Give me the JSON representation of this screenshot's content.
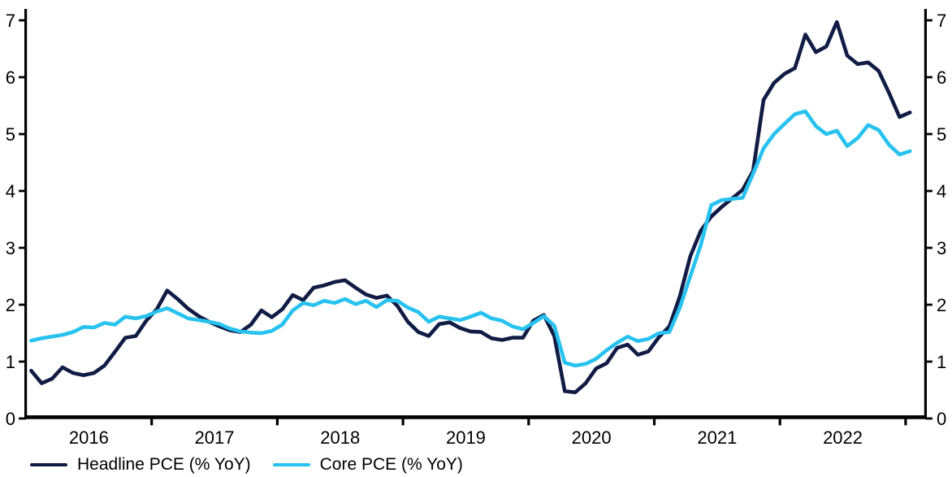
{
  "chart_data": {
    "type": "line",
    "title": "",
    "xlabel": "",
    "ylabel": "",
    "ylim": [
      0,
      7
    ],
    "yticks": [
      0,
      1,
      2,
      3,
      4,
      5,
      6,
      7
    ],
    "ytick_labels_left": [
      "0",
      "1",
      "2",
      "3",
      "4",
      "5",
      "6",
      "7"
    ],
    "ytick_labels_right": [
      "0",
      "1",
      "2",
      "3",
      "4",
      "5",
      "6",
      "7"
    ],
    "x_tick_years": [
      "2016",
      "2017",
      "2018",
      "2019",
      "2020",
      "2021",
      "2022"
    ],
    "grid": false,
    "legend_position": "bottom-left",
    "axes_style": {
      "left_axis": true,
      "right_axis": true,
      "bottom_axis": true,
      "axis_color": "#000000",
      "ticks_outward": true
    },
    "x": [
      "2016-01",
      "2016-02",
      "2016-03",
      "2016-04",
      "2016-05",
      "2016-06",
      "2016-07",
      "2016-08",
      "2016-09",
      "2016-10",
      "2016-11",
      "2016-12",
      "2017-01",
      "2017-02",
      "2017-03",
      "2017-04",
      "2017-05",
      "2017-06",
      "2017-07",
      "2017-08",
      "2017-09",
      "2017-10",
      "2017-11",
      "2017-12",
      "2018-01",
      "2018-02",
      "2018-03",
      "2018-04",
      "2018-05",
      "2018-06",
      "2018-07",
      "2018-08",
      "2018-09",
      "2018-10",
      "2018-11",
      "2018-12",
      "2019-01",
      "2019-02",
      "2019-03",
      "2019-04",
      "2019-05",
      "2019-06",
      "2019-07",
      "2019-08",
      "2019-09",
      "2019-10",
      "2019-11",
      "2019-12",
      "2020-01",
      "2020-02",
      "2020-03",
      "2020-04",
      "2020-05",
      "2020-06",
      "2020-07",
      "2020-08",
      "2020-09",
      "2020-10",
      "2020-11",
      "2020-12",
      "2021-01",
      "2021-02",
      "2021-03",
      "2021-04",
      "2021-05",
      "2021-06",
      "2021-07",
      "2021-08",
      "2021-09",
      "2021-10",
      "2021-11",
      "2021-12",
      "2022-01",
      "2022-02",
      "2022-03",
      "2022-04",
      "2022-05",
      "2022-06",
      "2022-07",
      "2022-08",
      "2022-09",
      "2022-10",
      "2022-11",
      "2022-12",
      "2023-01"
    ],
    "series": [
      {
        "name": "Headline PCE (% YoY)",
        "color": "#101c45",
        "values": [
          0.84,
          0.62,
          0.7,
          0.9,
          0.8,
          0.76,
          0.8,
          0.93,
          1.17,
          1.42,
          1.45,
          1.72,
          1.92,
          2.25,
          2.1,
          1.93,
          1.8,
          1.7,
          1.62,
          1.55,
          1.52,
          1.65,
          1.9,
          1.78,
          1.92,
          2.17,
          2.08,
          2.3,
          2.34,
          2.4,
          2.43,
          2.3,
          2.18,
          2.12,
          2.16,
          1.98,
          1.7,
          1.52,
          1.45,
          1.66,
          1.69,
          1.59,
          1.53,
          1.52,
          1.41,
          1.38,
          1.42,
          1.42,
          1.72,
          1.82,
          1.45,
          0.48,
          0.46,
          0.62,
          0.88,
          0.97,
          1.24,
          1.3,
          1.12,
          1.18,
          1.43,
          1.62,
          2.15,
          2.85,
          3.3,
          3.55,
          3.72,
          3.87,
          4.02,
          4.35,
          5.6,
          5.9,
          6.06,
          6.16,
          6.75,
          6.44,
          6.54,
          6.97,
          6.38,
          6.23,
          6.26,
          6.11,
          5.72,
          5.3,
          5.38
        ]
      },
      {
        "name": "Core PCE (% YoY)",
        "color": "#28c2f0",
        "values": [
          1.37,
          1.41,
          1.44,
          1.47,
          1.52,
          1.61,
          1.6,
          1.68,
          1.65,
          1.79,
          1.76,
          1.8,
          1.88,
          1.94,
          1.85,
          1.76,
          1.73,
          1.7,
          1.66,
          1.58,
          1.53,
          1.51,
          1.5,
          1.54,
          1.65,
          1.9,
          2.03,
          1.99,
          2.07,
          2.03,
          2.1,
          2.01,
          2.07,
          1.96,
          2.08,
          2.07,
          1.95,
          1.87,
          1.7,
          1.79,
          1.76,
          1.73,
          1.79,
          1.86,
          1.76,
          1.72,
          1.62,
          1.57,
          1.68,
          1.8,
          1.63,
          0.98,
          0.93,
          0.96,
          1.05,
          1.2,
          1.33,
          1.44,
          1.36,
          1.4,
          1.5,
          1.52,
          1.95,
          2.5,
          3.05,
          3.75,
          3.84,
          3.86,
          3.88,
          4.3,
          4.75,
          5.0,
          5.18,
          5.35,
          5.4,
          5.14,
          5.0,
          5.06,
          4.79,
          4.93,
          5.16,
          5.07,
          4.81,
          4.64,
          4.7
        ]
      }
    ]
  },
  "legend": {
    "items": [
      {
        "label": "Headline PCE (% YoY)",
        "color": "#101c45"
      },
      {
        "label": "Core PCE (% YoY)",
        "color": "#28c2f0"
      }
    ]
  }
}
